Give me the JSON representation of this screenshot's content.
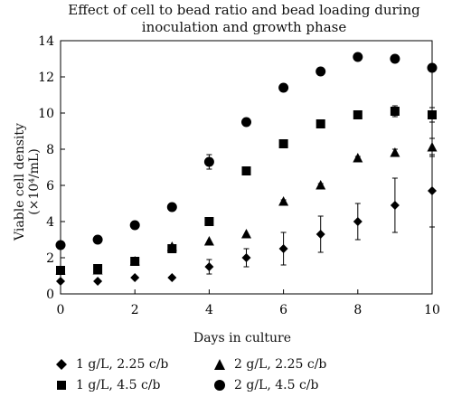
{
  "chart_data": {
    "type": "scatter",
    "title_lines": [
      "Effect of cell to bead ratio and bead loading during",
      "inoculation and growth phase"
    ],
    "xlabel": "Days in culture",
    "ylabel": "Viable cell density (×10⁴/mL)",
    "xlim": [
      0,
      10
    ],
    "ylim": [
      0,
      14
    ],
    "xticks": [
      0,
      2,
      4,
      6,
      8,
      10
    ],
    "yticks": [
      0,
      2,
      4,
      6,
      8,
      10,
      12,
      14
    ],
    "grid": false,
    "legend_position": "bottom",
    "series": [
      {
        "name": "1 g/L, 2.25 c/b",
        "marker": "diamond",
        "x": [
          0,
          1,
          2,
          3,
          4,
          5,
          6,
          7,
          8,
          9,
          10
        ],
        "y": [
          0.7,
          0.7,
          0.9,
          0.9,
          1.5,
          2.0,
          2.5,
          3.3,
          4.0,
          4.9,
          5.7
        ],
        "err": [
          0.05,
          0.05,
          0.05,
          0.05,
          0.4,
          0.5,
          0.9,
          1.0,
          1.0,
          1.5,
          2.0
        ]
      },
      {
        "name": "2 g/L, 2.25 c/b",
        "marker": "triangle",
        "x": [
          0,
          1,
          2,
          3,
          4,
          5,
          6,
          7,
          8,
          9,
          10
        ],
        "y": [
          1.3,
          1.3,
          1.8,
          2.6,
          2.9,
          3.3,
          5.1,
          6.0,
          7.5,
          7.8,
          8.1
        ],
        "err": [
          0.05,
          0.05,
          0.05,
          0.05,
          0.05,
          0.05,
          0.1,
          0.1,
          0.1,
          0.2,
          0.5
        ]
      },
      {
        "name": "1 g/L, 4.5 c/b",
        "marker": "square",
        "x": [
          0,
          1,
          2,
          3,
          4,
          5,
          6,
          7,
          8,
          9,
          10
        ],
        "y": [
          1.3,
          1.4,
          1.8,
          2.5,
          4.0,
          6.8,
          8.3,
          9.4,
          9.9,
          10.1,
          9.9
        ],
        "err": [
          0.05,
          0.05,
          0.05,
          0.1,
          0.1,
          0.2,
          0.1,
          0.1,
          0.1,
          0.3,
          0.4
        ]
      },
      {
        "name": "2 g/L, 4.5 c/b",
        "marker": "circle",
        "x": [
          0,
          1,
          2,
          3,
          4,
          5,
          6,
          7,
          8,
          9,
          10
        ],
        "y": [
          2.7,
          3.0,
          3.8,
          4.8,
          7.3,
          9.5,
          11.4,
          12.3,
          13.1,
          13.0,
          12.5
        ],
        "err": [
          0.05,
          0.05,
          0.05,
          0.05,
          0.4,
          0.05,
          0.2,
          0.05,
          0.05,
          0.2,
          0.2
        ]
      }
    ],
    "legend_order": [
      0,
      1,
      2,
      3
    ]
  }
}
